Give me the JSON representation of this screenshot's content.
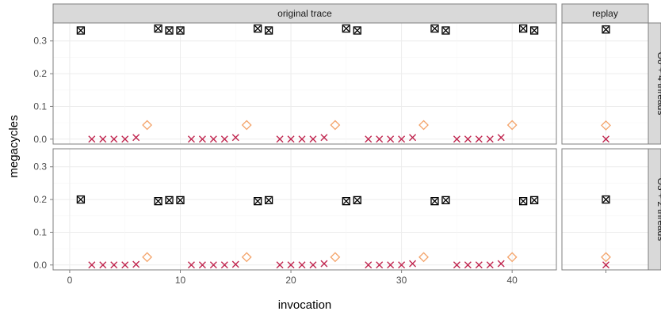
{
  "chart_data": {
    "type": "scatter",
    "xlabel": "invocation",
    "ylabel": "megacycles",
    "column_strips": [
      "original trace",
      "replay"
    ],
    "row_strips": [
      "O0 + 4 threads",
      "O3 + 2 threads"
    ],
    "x_ticks": [
      "0",
      "10",
      "20",
      "30",
      "40"
    ],
    "y_ticks": [
      "0.0",
      "0.1",
      "0.2",
      "0.3"
    ],
    "xlim": [
      -1.5,
      44
    ],
    "ylim": [
      -0.015,
      0.355
    ],
    "panels": [
      {
        "row": "O0 + 4 threads",
        "column": "original trace",
        "series": [
          {
            "marker": "boxed-x",
            "color": "#000000",
            "x": [
              1,
              8,
              9,
              10,
              17,
              18,
              25,
              26,
              33,
              34,
              41,
              42
            ],
            "y": [
              0.332,
              0.338,
              0.332,
              0.332,
              0.338,
              0.332,
              0.338,
              0.332,
              0.338,
              0.332,
              0.338,
              0.332
            ]
          },
          {
            "marker": "x",
            "color": "#c0264f",
            "x": [
              2,
              3,
              4,
              5,
              6,
              11,
              12,
              13,
              14,
              15,
              19,
              20,
              21,
              22,
              23,
              27,
              28,
              29,
              30,
              31,
              35,
              36,
              37,
              38,
              39
            ],
            "y": [
              0.0,
              0.0,
              0.0,
              0.0,
              0.005,
              0.0,
              0.0,
              0.0,
              0.0,
              0.005,
              0.0,
              0.0,
              0.0,
              0.0,
              0.005,
              0.0,
              0.0,
              0.0,
              0.0,
              0.005,
              0.0,
              0.0,
              0.0,
              0.0,
              0.005
            ]
          },
          {
            "marker": "diamond",
            "color": "#f4a46b",
            "x": [
              7,
              16,
              24,
              32,
              40
            ],
            "y": [
              0.043,
              0.043,
              0.043,
              0.043,
              0.043
            ]
          }
        ]
      },
      {
        "row": "O0 + 4 threads",
        "column": "replay",
        "series": [
          {
            "marker": "boxed-x",
            "color": "#000000",
            "y": [
              0.335
            ]
          },
          {
            "marker": "x",
            "color": "#c0264f",
            "y": [
              0.0
            ]
          },
          {
            "marker": "diamond",
            "color": "#f4a46b",
            "y": [
              0.042
            ]
          }
        ]
      },
      {
        "row": "O3 + 2 threads",
        "column": "original trace",
        "series": [
          {
            "marker": "boxed-x",
            "color": "#000000",
            "x": [
              1,
              8,
              9,
              10,
              17,
              18,
              25,
              26,
              33,
              34,
              41,
              42
            ],
            "y": [
              0.2,
              0.195,
              0.198,
              0.198,
              0.195,
              0.198,
              0.195,
              0.198,
              0.195,
              0.198,
              0.195,
              0.198
            ]
          },
          {
            "marker": "x",
            "color": "#c0264f",
            "x": [
              2,
              3,
              4,
              5,
              6,
              11,
              12,
              13,
              14,
              15,
              19,
              20,
              21,
              22,
              23,
              27,
              28,
              29,
              30,
              31,
              35,
              36,
              37,
              38,
              39
            ],
            "y": [
              0.0,
              0.0,
              0.0,
              0.0,
              0.002,
              0.0,
              0.0,
              0.0,
              0.0,
              0.002,
              0.0,
              0.0,
              0.0,
              0.0,
              0.004,
              0.0,
              0.0,
              0.0,
              0.0,
              0.004,
              0.0,
              0.0,
              0.0,
              0.0,
              0.004
            ]
          },
          {
            "marker": "diamond",
            "color": "#f4a46b",
            "x": [
              7,
              16,
              24,
              32,
              40
            ],
            "y": [
              0.024,
              0.024,
              0.024,
              0.024,
              0.024
            ]
          }
        ]
      },
      {
        "row": "O3 + 2 threads",
        "column": "replay",
        "series": [
          {
            "marker": "boxed-x",
            "color": "#000000",
            "y": [
              0.2
            ]
          },
          {
            "marker": "x",
            "color": "#c0264f",
            "y": [
              0.0
            ]
          },
          {
            "marker": "diamond",
            "color": "#f4a46b",
            "y": [
              0.024
            ]
          }
        ]
      }
    ],
    "style": {
      "panel_background": "#ffffff",
      "panel_border": "#7f7f7f",
      "grid_major": "#ececec",
      "grid_minor": "#f6f6f6",
      "strip_fill": "#d9d9d9",
      "strip_border": "#7f7f7f"
    }
  }
}
